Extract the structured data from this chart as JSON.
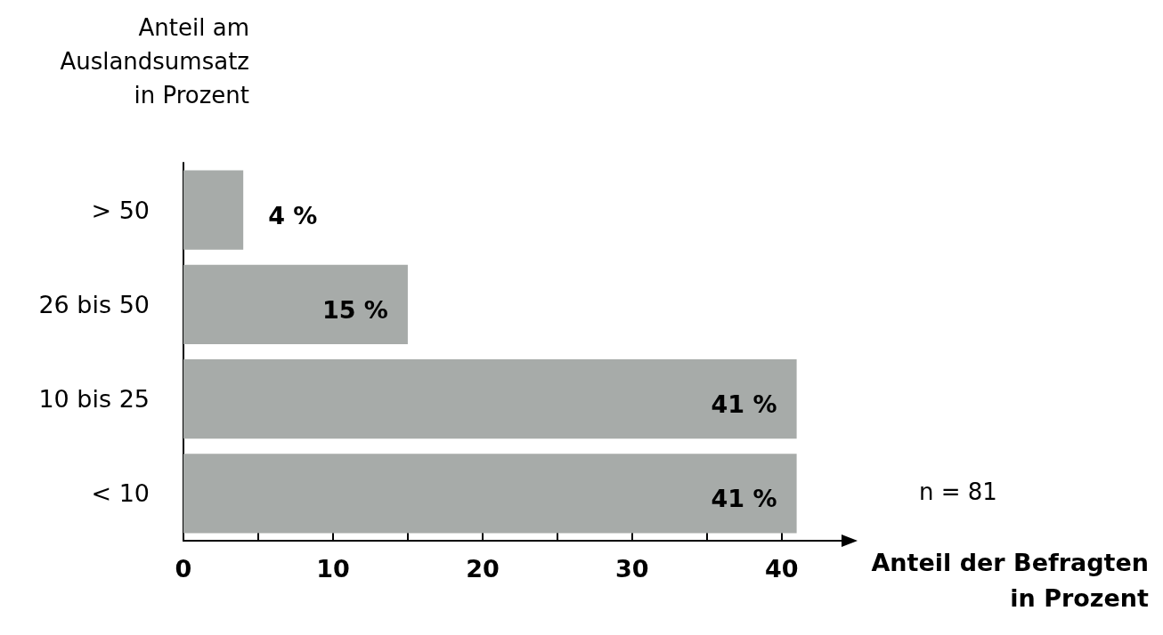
{
  "chart_data": {
    "type": "bar",
    "orientation": "horizontal",
    "categories": [
      "> 50",
      "26 bis 50",
      "10 bis 25",
      "< 10"
    ],
    "values": [
      4,
      15,
      41,
      41
    ],
    "value_labels": [
      "4 %",
      "15 %",
      "41 %",
      "41 %"
    ],
    "color": "#a7aba9",
    "xlim": [
      0,
      44
    ],
    "xticks": [
      0,
      {
        "value": 5,
        "label": null
      },
      10,
      {
        "value": 15,
        "label": null
      },
      20,
      {
        "value": 25,
        "label": null
      },
      30,
      {
        "value": 35,
        "label": null
      },
      40
    ],
    "xlabel": "Anteil der Befragten\nin Prozent",
    "ylabel": "Anteil am\nAuslandsumsatz\nin Prozent",
    "annotations": [
      "n = 81"
    ],
    "grid": false
  }
}
